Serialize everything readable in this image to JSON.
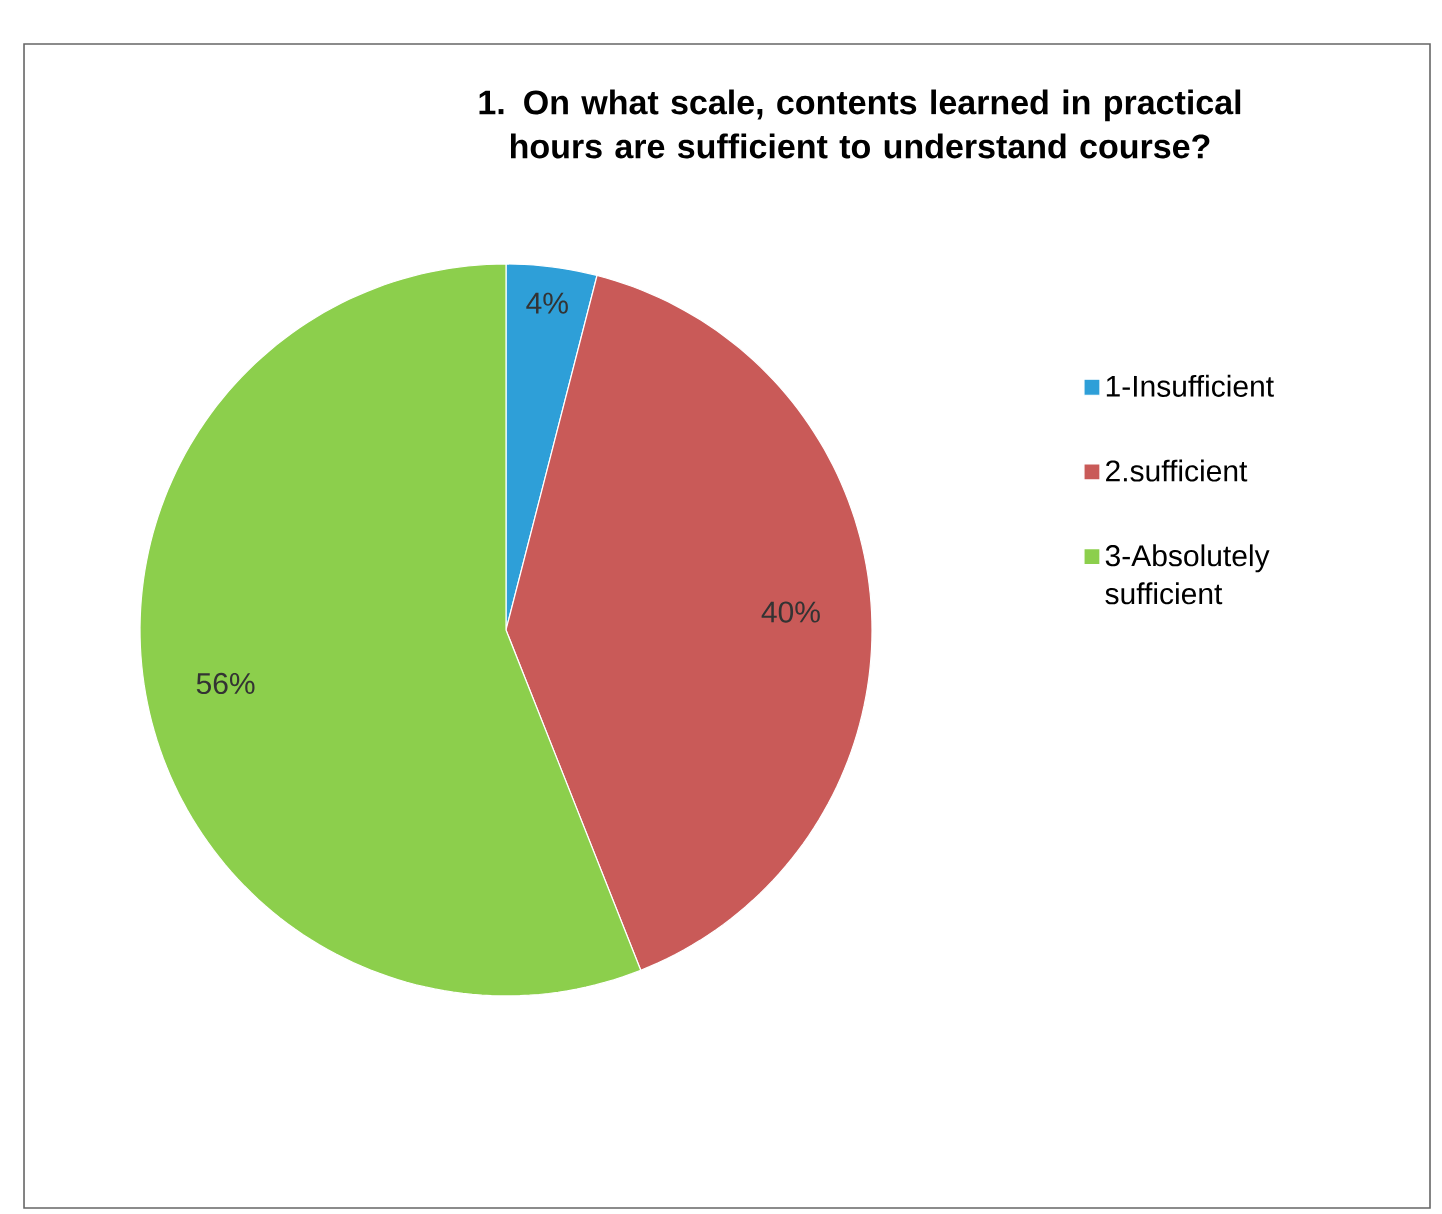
{
  "chart_data": {
    "type": "pie",
    "title": "1. On what scale, contents learned in practical hours are sufficient to understand course?",
    "categories": [
      "1-Insufficient",
      "2.sufficient",
      "3-Absolutely sufficient"
    ],
    "values": [
      4,
      40,
      56
    ],
    "colors": [
      "#2e9fd8",
      "#c95a58",
      "#8ccf4c"
    ],
    "value_labels": [
      "4%",
      "40%",
      "56%"
    ],
    "legend": "right"
  }
}
